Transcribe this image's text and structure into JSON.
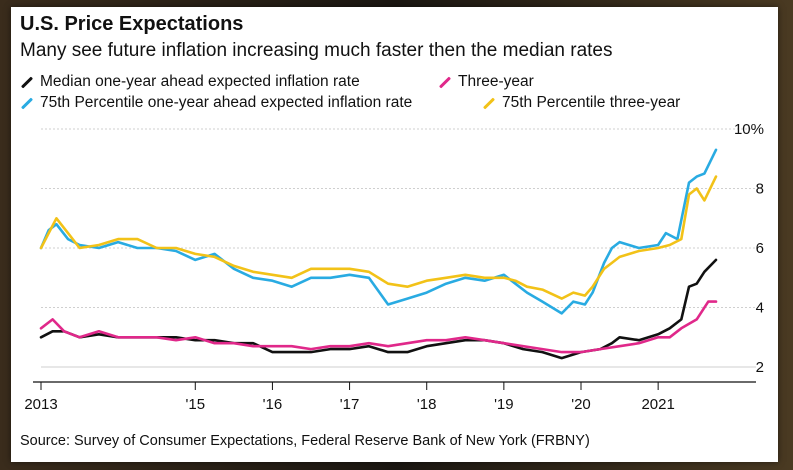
{
  "title": "U.S. Price Expectations",
  "subtitle": "Many see future inflation increasing much faster then the median rates",
  "source": "Source: Survey of Consumer Expectations, Federal Reserve Bank of New York (FRBNY)",
  "legend": [
    {
      "label": "Median one-year ahead expected inflation rate",
      "color": "#111111"
    },
    {
      "label": "Three-year",
      "color": "#e0288a"
    },
    {
      "label": "75th Percentile one-year ahead expected inflation rate",
      "color": "#29abe2"
    },
    {
      "label": "75th Percentile three-year",
      "color": "#f2c218"
    }
  ],
  "chart_data": {
    "type": "line",
    "title": "U.S. Price Expectations",
    "xlabel": "",
    "ylabel": "",
    "x_ticks": [
      "2013",
      "'15",
      "'16",
      "'17",
      "'18",
      "'19",
      "'20",
      "2021"
    ],
    "x_tick_values": [
      2013,
      2015,
      2016,
      2017,
      2018,
      2019,
      2020,
      2021
    ],
    "y_ticks": [
      "2",
      "4",
      "6",
      "8",
      "10%"
    ],
    "y_tick_values": [
      2,
      4,
      6,
      8,
      10
    ],
    "ylim": [
      2,
      10
    ],
    "xlim": [
      2013,
      2021.75
    ],
    "grid": "horizontal",
    "series": [
      {
        "name": "Median one-year ahead expected inflation rate",
        "color": "#111111",
        "points": [
          [
            2013.0,
            3.0
          ],
          [
            2013.15,
            3.2
          ],
          [
            2013.3,
            3.2
          ],
          [
            2013.5,
            3.0
          ],
          [
            2013.75,
            3.1
          ],
          [
            2014.0,
            3.0
          ],
          [
            2014.5,
            3.0
          ],
          [
            2014.75,
            3.0
          ],
          [
            2015.0,
            2.9
          ],
          [
            2015.25,
            2.9
          ],
          [
            2015.5,
            2.8
          ],
          [
            2015.75,
            2.8
          ],
          [
            2016.0,
            2.5
          ],
          [
            2016.25,
            2.5
          ],
          [
            2016.5,
            2.5
          ],
          [
            2016.75,
            2.6
          ],
          [
            2017.0,
            2.6
          ],
          [
            2017.25,
            2.7
          ],
          [
            2017.5,
            2.5
          ],
          [
            2017.75,
            2.5
          ],
          [
            2018.0,
            2.7
          ],
          [
            2018.25,
            2.8
          ],
          [
            2018.5,
            2.9
          ],
          [
            2018.75,
            2.9
          ],
          [
            2019.0,
            2.8
          ],
          [
            2019.25,
            2.6
          ],
          [
            2019.5,
            2.5
          ],
          [
            2019.75,
            2.3
          ],
          [
            2020.0,
            2.5
          ],
          [
            2020.25,
            2.6
          ],
          [
            2020.4,
            2.8
          ],
          [
            2020.5,
            3.0
          ],
          [
            2020.75,
            2.9
          ],
          [
            2021.0,
            3.1
          ],
          [
            2021.15,
            3.3
          ],
          [
            2021.3,
            3.6
          ],
          [
            2021.4,
            4.7
          ],
          [
            2021.5,
            4.8
          ],
          [
            2021.6,
            5.2
          ],
          [
            2021.75,
            5.6
          ]
        ]
      },
      {
        "name": "Three-year",
        "color": "#e0288a",
        "points": [
          [
            2013.0,
            3.3
          ],
          [
            2013.15,
            3.6
          ],
          [
            2013.3,
            3.2
          ],
          [
            2013.5,
            3.0
          ],
          [
            2013.75,
            3.2
          ],
          [
            2014.0,
            3.0
          ],
          [
            2014.5,
            3.0
          ],
          [
            2014.75,
            2.9
          ],
          [
            2015.0,
            3.0
          ],
          [
            2015.25,
            2.8
          ],
          [
            2015.5,
            2.8
          ],
          [
            2015.75,
            2.7
          ],
          [
            2016.0,
            2.7
          ],
          [
            2016.25,
            2.7
          ],
          [
            2016.5,
            2.6
          ],
          [
            2016.75,
            2.7
          ],
          [
            2017.0,
            2.7
          ],
          [
            2017.25,
            2.8
          ],
          [
            2017.5,
            2.7
          ],
          [
            2017.75,
            2.8
          ],
          [
            2018.0,
            2.9
          ],
          [
            2018.25,
            2.9
          ],
          [
            2018.5,
            3.0
          ],
          [
            2018.75,
            2.9
          ],
          [
            2019.0,
            2.8
          ],
          [
            2019.25,
            2.7
          ],
          [
            2019.5,
            2.6
          ],
          [
            2019.75,
            2.5
          ],
          [
            2020.0,
            2.5
          ],
          [
            2020.25,
            2.6
          ],
          [
            2020.5,
            2.7
          ],
          [
            2020.75,
            2.8
          ],
          [
            2021.0,
            3.0
          ],
          [
            2021.15,
            3.0
          ],
          [
            2021.3,
            3.3
          ],
          [
            2021.5,
            3.6
          ],
          [
            2021.65,
            4.2
          ],
          [
            2021.75,
            4.2
          ]
        ]
      },
      {
        "name": "75th Percentile one-year ahead expected inflation rate",
        "color": "#29abe2",
        "points": [
          [
            2013.0,
            6.0
          ],
          [
            2013.1,
            6.6
          ],
          [
            2013.2,
            6.8
          ],
          [
            2013.35,
            6.3
          ],
          [
            2013.5,
            6.1
          ],
          [
            2013.75,
            6.0
          ],
          [
            2014.0,
            6.2
          ],
          [
            2014.25,
            6.0
          ],
          [
            2014.5,
            6.0
          ],
          [
            2014.75,
            5.9
          ],
          [
            2015.0,
            5.6
          ],
          [
            2015.25,
            5.8
          ],
          [
            2015.5,
            5.3
          ],
          [
            2015.75,
            5.0
          ],
          [
            2016.0,
            4.9
          ],
          [
            2016.25,
            4.7
          ],
          [
            2016.5,
            5.0
          ],
          [
            2016.75,
            5.0
          ],
          [
            2017.0,
            5.1
          ],
          [
            2017.25,
            5.0
          ],
          [
            2017.5,
            4.1
          ],
          [
            2017.75,
            4.3
          ],
          [
            2018.0,
            4.5
          ],
          [
            2018.25,
            4.8
          ],
          [
            2018.5,
            5.0
          ],
          [
            2018.75,
            4.9
          ],
          [
            2019.0,
            5.1
          ],
          [
            2019.15,
            4.8
          ],
          [
            2019.3,
            4.5
          ],
          [
            2019.5,
            4.2
          ],
          [
            2019.75,
            3.8
          ],
          [
            2019.9,
            4.2
          ],
          [
            2020.05,
            4.1
          ],
          [
            2020.15,
            4.5
          ],
          [
            2020.3,
            5.5
          ],
          [
            2020.4,
            6.0
          ],
          [
            2020.5,
            6.2
          ],
          [
            2020.75,
            6.0
          ],
          [
            2021.0,
            6.1
          ],
          [
            2021.1,
            6.5
          ],
          [
            2021.25,
            6.3
          ],
          [
            2021.4,
            8.2
          ],
          [
            2021.5,
            8.4
          ],
          [
            2021.6,
            8.5
          ],
          [
            2021.75,
            9.3
          ]
        ]
      },
      {
        "name": "75th Percentile three-year",
        "color": "#f2c218",
        "points": [
          [
            2013.0,
            6.0
          ],
          [
            2013.1,
            6.5
          ],
          [
            2013.2,
            7.0
          ],
          [
            2013.35,
            6.5
          ],
          [
            2013.5,
            6.0
          ],
          [
            2013.75,
            6.1
          ],
          [
            2014.0,
            6.3
          ],
          [
            2014.25,
            6.3
          ],
          [
            2014.5,
            6.0
          ],
          [
            2014.75,
            6.0
          ],
          [
            2015.0,
            5.8
          ],
          [
            2015.25,
            5.7
          ],
          [
            2015.5,
            5.4
          ],
          [
            2015.75,
            5.2
          ],
          [
            2016.0,
            5.1
          ],
          [
            2016.25,
            5.0
          ],
          [
            2016.5,
            5.3
          ],
          [
            2016.75,
            5.3
          ],
          [
            2017.0,
            5.3
          ],
          [
            2017.25,
            5.2
          ],
          [
            2017.5,
            4.8
          ],
          [
            2017.75,
            4.7
          ],
          [
            2018.0,
            4.9
          ],
          [
            2018.25,
            5.0
          ],
          [
            2018.5,
            5.1
          ],
          [
            2018.75,
            5.0
          ],
          [
            2019.0,
            5.0
          ],
          [
            2019.15,
            4.9
          ],
          [
            2019.3,
            4.7
          ],
          [
            2019.5,
            4.6
          ],
          [
            2019.75,
            4.3
          ],
          [
            2019.9,
            4.5
          ],
          [
            2020.05,
            4.4
          ],
          [
            2020.15,
            4.7
          ],
          [
            2020.3,
            5.3
          ],
          [
            2020.4,
            5.5
          ],
          [
            2020.5,
            5.7
          ],
          [
            2020.75,
            5.9
          ],
          [
            2021.0,
            6.0
          ],
          [
            2021.15,
            6.1
          ],
          [
            2021.3,
            6.3
          ],
          [
            2021.4,
            7.8
          ],
          [
            2021.5,
            8.0
          ],
          [
            2021.6,
            7.6
          ],
          [
            2021.75,
            8.4
          ]
        ]
      }
    ]
  }
}
